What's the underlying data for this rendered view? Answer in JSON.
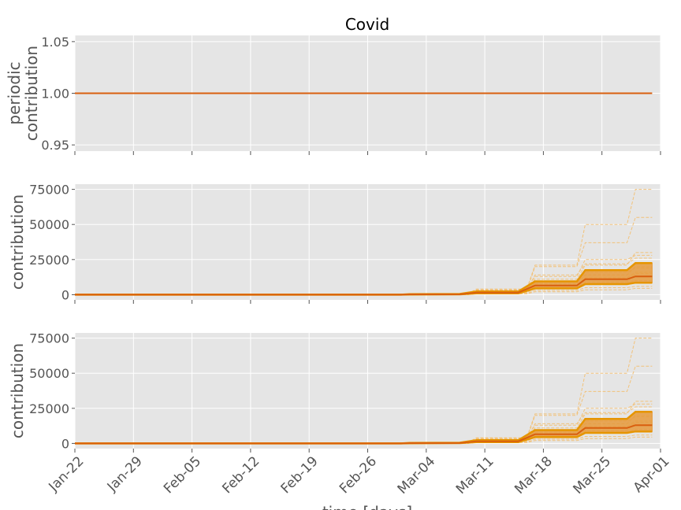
{
  "chart_data": {
    "type": "line",
    "title": "Covid",
    "xlabel": "time [days]",
    "x_tick_labels": [
      "Jan-22",
      "Jan-29",
      "Feb-05",
      "Feb-12",
      "Feb-19",
      "Feb-26",
      "Mar-04",
      "Mar-11",
      "Mar-18",
      "Mar-25",
      "Apr-01"
    ],
    "x_start_date": "2020-01-22",
    "x_end_date": "2020-04-01",
    "colors": {
      "median": "#d95f0e",
      "band": "#e69a3c",
      "samples": "#f2c27a",
      "panel_bg": "#e5e5e5"
    },
    "panels": [
      {
        "ylabel": "periodic\ncontribution",
        "yticks": [
          0.95,
          1.0,
          1.05
        ],
        "ytick_labels": [
          "0.95",
          "1.00",
          "1.05"
        ],
        "ylim": [
          0.944,
          1.056
        ],
        "median": [
          [
            "2020-01-22",
            1.0
          ],
          [
            "2020-03-31",
            1.0
          ]
        ]
      },
      {
        "ylabel": "contribution",
        "yticks": [
          0,
          25000,
          50000,
          75000
        ],
        "ytick_labels": [
          "0",
          "25000",
          "50000",
          "75000"
        ],
        "ylim": [
          -3700,
          78700
        ],
        "median": [
          [
            "2020-01-22",
            0
          ],
          [
            "2020-03-01",
            0
          ],
          [
            "2020-03-02",
            200
          ],
          [
            "2020-03-08",
            300
          ],
          [
            "2020-03-10",
            1500
          ],
          [
            "2020-03-15",
            1500
          ],
          [
            "2020-03-17",
            6500
          ],
          [
            "2020-03-22",
            6500
          ],
          [
            "2020-03-23",
            11000
          ],
          [
            "2020-03-28",
            11000
          ],
          [
            "2020-03-29",
            13000
          ],
          [
            "2020-03-31",
            13000
          ]
        ],
        "band_upper": [
          [
            "2020-01-22",
            0
          ],
          [
            "2020-03-01",
            0
          ],
          [
            "2020-03-02",
            400
          ],
          [
            "2020-03-08",
            500
          ],
          [
            "2020-03-10",
            2300
          ],
          [
            "2020-03-15",
            2300
          ],
          [
            "2020-03-17",
            9500
          ],
          [
            "2020-03-22",
            9500
          ],
          [
            "2020-03-23",
            17500
          ],
          [
            "2020-03-28",
            17500
          ],
          [
            "2020-03-29",
            22500
          ],
          [
            "2020-03-31",
            22500
          ]
        ],
        "band_lower": [
          [
            "2020-01-22",
            0
          ],
          [
            "2020-03-01",
            0
          ],
          [
            "2020-03-02",
            100
          ],
          [
            "2020-03-08",
            200
          ],
          [
            "2020-03-10",
            900
          ],
          [
            "2020-03-15",
            900
          ],
          [
            "2020-03-17",
            4500
          ],
          [
            "2020-03-22",
            4500
          ],
          [
            "2020-03-23",
            7500
          ],
          [
            "2020-03-28",
            7500
          ],
          [
            "2020-03-29",
            8500
          ],
          [
            "2020-03-31",
            8500
          ]
        ],
        "sample_levels": [
          [
            2200,
            5000,
            9000,
            15000
          ],
          [
            3000,
            8000,
            14000,
            20000
          ],
          [
            3500,
            11000,
            21000,
            30000
          ],
          [
            4000,
            13000,
            25000,
            28000
          ],
          [
            2500,
            20000,
            37000,
            55000
          ],
          [
            3800,
            21000,
            50000,
            75000
          ],
          [
            1500,
            7000,
            12000,
            16000
          ],
          [
            1200,
            5000,
            8000,
            10000
          ],
          [
            800,
            3000,
            5000,
            6000
          ],
          [
            600,
            2000,
            3500,
            4500
          ],
          [
            2800,
            14000,
            22000,
            26000
          ],
          [
            1800,
            9000,
            16000,
            19000
          ]
        ]
      },
      {
        "ylabel": "contribution",
        "yticks": [
          0,
          25000,
          50000,
          75000
        ],
        "ytick_labels": [
          "0",
          "25000",
          "50000",
          "75000"
        ],
        "ylim": [
          -3700,
          78700
        ],
        "median": [
          [
            "2020-01-22",
            0
          ],
          [
            "2020-03-01",
            0
          ],
          [
            "2020-03-02",
            200
          ],
          [
            "2020-03-08",
            300
          ],
          [
            "2020-03-10",
            1500
          ],
          [
            "2020-03-15",
            1500
          ],
          [
            "2020-03-17",
            6500
          ],
          [
            "2020-03-22",
            6500
          ],
          [
            "2020-03-23",
            11000
          ],
          [
            "2020-03-28",
            11000
          ],
          [
            "2020-03-29",
            13000
          ],
          [
            "2020-03-31",
            13000
          ]
        ],
        "band_upper": [
          [
            "2020-01-22",
            0
          ],
          [
            "2020-03-01",
            0
          ],
          [
            "2020-03-02",
            400
          ],
          [
            "2020-03-08",
            500
          ],
          [
            "2020-03-10",
            2300
          ],
          [
            "2020-03-15",
            2300
          ],
          [
            "2020-03-17",
            9500
          ],
          [
            "2020-03-22",
            9500
          ],
          [
            "2020-03-23",
            17500
          ],
          [
            "2020-03-28",
            17500
          ],
          [
            "2020-03-29",
            22500
          ],
          [
            "2020-03-31",
            22500
          ]
        ],
        "band_lower": [
          [
            "2020-01-22",
            0
          ],
          [
            "2020-03-01",
            0
          ],
          [
            "2020-03-02",
            100
          ],
          [
            "2020-03-08",
            200
          ],
          [
            "2020-03-10",
            900
          ],
          [
            "2020-03-15",
            900
          ],
          [
            "2020-03-17",
            4500
          ],
          [
            "2020-03-22",
            4500
          ],
          [
            "2020-03-23",
            7500
          ],
          [
            "2020-03-28",
            7500
          ],
          [
            "2020-03-29",
            8500
          ],
          [
            "2020-03-31",
            8500
          ]
        ],
        "sample_levels": [
          [
            2200,
            5000,
            9000,
            15000
          ],
          [
            3000,
            8000,
            14000,
            20000
          ],
          [
            3500,
            11000,
            21000,
            30000
          ],
          [
            4000,
            13000,
            25000,
            28000
          ],
          [
            2500,
            20000,
            37000,
            55000
          ],
          [
            3800,
            21000,
            50000,
            75000
          ],
          [
            1500,
            7000,
            12000,
            16000
          ],
          [
            1200,
            5000,
            8000,
            10000
          ],
          [
            800,
            3000,
            5000,
            6000
          ],
          [
            600,
            2000,
            3500,
            4500
          ],
          [
            2800,
            14000,
            22000,
            26000
          ],
          [
            1800,
            9000,
            16000,
            19000
          ]
        ]
      }
    ]
  }
}
